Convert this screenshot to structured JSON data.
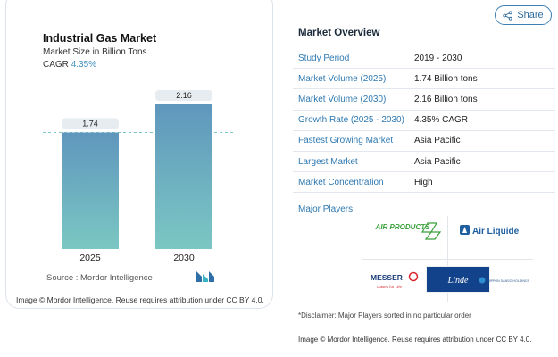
{
  "chart": {
    "title": "Industrial Gas Market",
    "subtitle": "Market Size in Billion Tons",
    "cagr_label": "CAGR",
    "cagr_value": "4.35%",
    "source": "Source :  Mordor Intelligence",
    "credit": "Image © Mordor Intelligence. Reuse requires attribution under CC BY 4.0."
  },
  "chart_data": {
    "type": "bar",
    "categories": [
      "2025",
      "2030"
    ],
    "values": [
      1.74,
      2.16
    ],
    "value_labels": [
      "1.74",
      "2.16"
    ],
    "title": "Industrial Gas Market",
    "ylabel": "Market Size in Billion Tons",
    "ylim": [
      0,
      2.16
    ],
    "bar_color": "#5e9bbb",
    "bar_color_bottom": "#7cc6c4",
    "reference_line": 1.74
  },
  "share": {
    "label": "Share",
    "icon": "share-icon"
  },
  "overview": {
    "title": "Market Overview",
    "rows": [
      {
        "key": "Study Period",
        "value": "2019 - 2030"
      },
      {
        "key": "Market Volume (2025)",
        "value": "1.74 Billion tons"
      },
      {
        "key": "Market Volume (2030)",
        "value": "2.16 Billion tons"
      },
      {
        "key": "Growth Rate (2025 - 2030)",
        "value": "4.35% CAGR"
      },
      {
        "key": "Fastest Growing Market",
        "value": "Asia Pacific"
      },
      {
        "key": "Largest Market",
        "value": "Asia Pacific"
      },
      {
        "key": "Market Concentration",
        "value": "High"
      }
    ]
  },
  "players": {
    "label": "Major Players",
    "logos": {
      "air_products": "AIR PRODUCTS",
      "air_liquide": "Air Liquide",
      "messer": "MESSER",
      "messer_tagline": "Gases for Life",
      "linde": "Linde",
      "nippon_sanso": "NIPPON SANSO HOLDINGS"
    }
  },
  "disclaimer": "*Disclaimer: Major Players sorted in no particular order",
  "credit_right": "Image © Mordor Intelligence. Reuse requires attribution under CC BY 4.0."
}
